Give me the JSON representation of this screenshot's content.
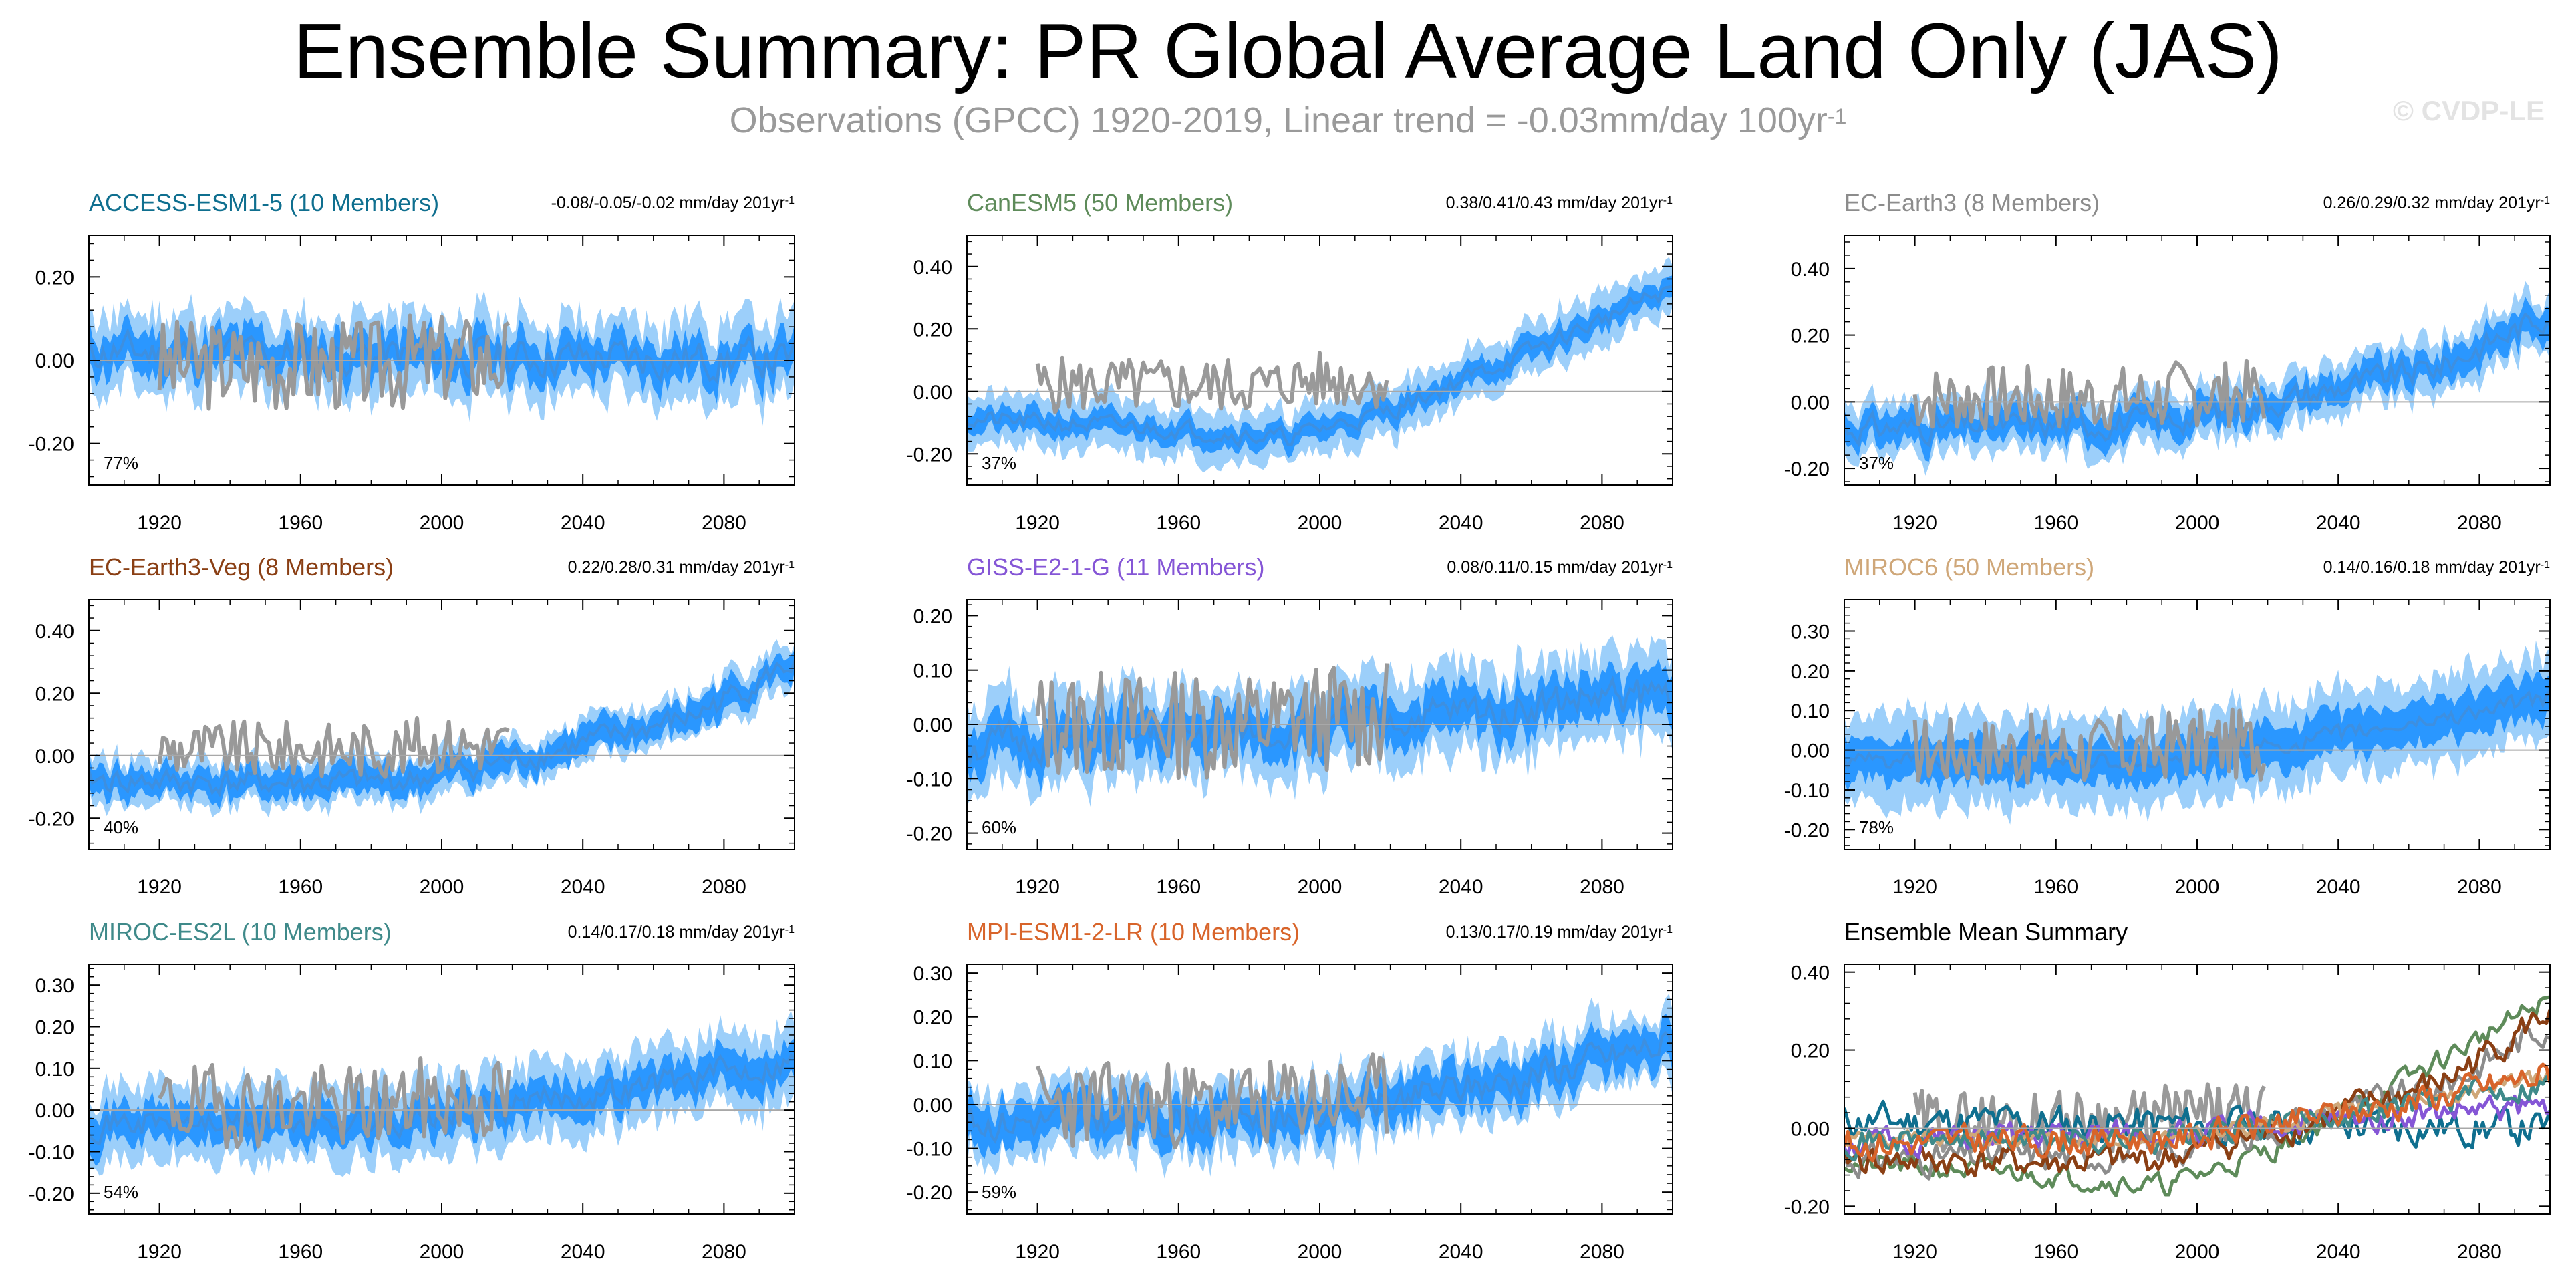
{
  "title": "Ensemble Summary: PR Global Average Land Only (JAS)",
  "subtitle": {
    "text": "Observations (GPCC) 1920-2019, Linear trend = -0.03mm/day 100yr",
    "superscript": "-1"
  },
  "watermark": "© CVDP-LE",
  "colors": {
    "ensemble_mean": "#3d8fe0",
    "spread_inner": "#1e90ff",
    "spread_outer": "#9ccffa",
    "observations": "#999999",
    "axis": "#000000",
    "zero_line": "#a8a8a8"
  },
  "chart_data": [
    {
      "type": "line",
      "title": "ACCESS-ESM1-5 (10 Members)",
      "title_color": "#0f6f8f",
      "trend_text": "-0.08/-0.05/-0.02 mm/day 201yr",
      "trend_superscript": "-1",
      "percent_label": "77%",
      "xlim": [
        1900,
        2100
      ],
      "ylim": [
        -0.3,
        0.3
      ],
      "xticks": [
        1920,
        1960,
        2000,
        2040,
        2080
      ],
      "xtick_labels": [
        "1920",
        "1960",
        "2000",
        "2040",
        "2080"
      ],
      "yticks": [
        -0.2,
        0.0,
        0.2
      ],
      "ytick_labels": [
        "-0.20",
        "0.00",
        "0.20"
      ],
      "model": {
        "start": 1900,
        "end": 2100,
        "mean_trend": [
          0.02,
          0.0
        ],
        "noise": 0.04,
        "inner": 0.05,
        "outer": 0.09,
        "seed": 11
      },
      "observations": {
        "start": 1920,
        "end": 2019,
        "noise": 0.11,
        "offset": -0.01,
        "seed": 3
      }
    },
    {
      "type": "line",
      "title": "CanESM5 (50 Members)",
      "title_color": "#5e8b5a",
      "trend_text": "0.38/0.41/0.43 mm/day 201yr",
      "trend_superscript": "-1",
      "percent_label": "37%",
      "xlim": [
        1900,
        2100
      ],
      "ylim": [
        -0.3,
        0.5
      ],
      "xticks": [
        1920,
        1960,
        2000,
        2040,
        2080
      ],
      "xtick_labels": [
        "1920",
        "1960",
        "2000",
        "2040",
        "2080"
      ],
      "yticks": [
        -0.2,
        0.0,
        0.2,
        0.4
      ],
      "ytick_labels": [
        "-0.20",
        "0.00",
        "0.20",
        "0.40"
      ],
      "model": {
        "start": 1900,
        "end": 2100,
        "mean_knots": [
          [
            1900,
            -0.09
          ],
          [
            1960,
            -0.12
          ],
          [
            1990,
            -0.15
          ],
          [
            2020,
            -0.06
          ],
          [
            2060,
            0.13
          ],
          [
            2100,
            0.33
          ]
        ],
        "noise": 0.025,
        "inner": 0.04,
        "outer": 0.08,
        "seed": 21
      },
      "observations": {
        "start": 1920,
        "end": 2019,
        "noise": 0.09,
        "offset": 0.02,
        "seed": 5
      }
    },
    {
      "type": "line",
      "title": "EC-Earth3 (8 Members)",
      "title_color": "#8c8c8c",
      "trend_text": "0.26/0.29/0.32 mm/day 201yr",
      "trend_superscript": "-1",
      "percent_label": "37%",
      "xlim": [
        1900,
        2100
      ],
      "ylim": [
        -0.25,
        0.5
      ],
      "xticks": [
        1920,
        1960,
        2000,
        2040,
        2080
      ],
      "xtick_labels": [
        "1920",
        "1960",
        "2000",
        "2040",
        "2080"
      ],
      "yticks": [
        -0.2,
        0.0,
        0.2,
        0.4
      ],
      "ytick_labels": [
        "-0.20",
        "0.00",
        "0.20",
        "0.40"
      ],
      "model": {
        "start": 1900,
        "end": 2100,
        "mean_knots": [
          [
            1900,
            -0.08
          ],
          [
            1960,
            -0.07
          ],
          [
            1990,
            -0.06
          ],
          [
            2030,
            0.02
          ],
          [
            2070,
            0.11
          ],
          [
            2100,
            0.27
          ]
        ],
        "noise": 0.035,
        "inner": 0.05,
        "outer": 0.08,
        "seed": 31
      },
      "observations": {
        "start": 1920,
        "end": 2019,
        "noise": 0.1,
        "offset": 0.01,
        "seed": 7
      }
    },
    {
      "type": "line",
      "title": "EC-Earth3-Veg (8 Members)",
      "title_color": "#8a3f14",
      "trend_text": "0.22/0.28/0.31 mm/day 201yr",
      "trend_superscript": "-1",
      "percent_label": "40%",
      "xlim": [
        1900,
        2100
      ],
      "ylim": [
        -0.3,
        0.5
      ],
      "xticks": [
        1920,
        1960,
        2000,
        2040,
        2080
      ],
      "xtick_labels": [
        "1920",
        "1960",
        "2000",
        "2040",
        "2080"
      ],
      "yticks": [
        -0.2,
        0.0,
        0.2,
        0.4
      ],
      "ytick_labels": [
        "-0.20",
        "0.00",
        "0.20",
        "0.40"
      ],
      "model": {
        "start": 1900,
        "end": 2100,
        "mean_knots": [
          [
            1900,
            -0.08
          ],
          [
            1960,
            -0.09
          ],
          [
            1990,
            -0.08
          ],
          [
            2030,
            0.01
          ],
          [
            2070,
            0.12
          ],
          [
            2100,
            0.3
          ]
        ],
        "noise": 0.035,
        "inner": 0.05,
        "outer": 0.07,
        "seed": 41
      },
      "observations": {
        "start": 1920,
        "end": 2019,
        "noise": 0.09,
        "offset": 0.02,
        "seed": 9
      }
    },
    {
      "type": "line",
      "title": "GISS-E2-1-G (11 Members)",
      "title_color": "#8556d6",
      "trend_text": "0.08/0.11/0.15 mm/day 201yr",
      "trend_superscript": "-1",
      "percent_label": "60%",
      "xlim": [
        1900,
        2100
      ],
      "ylim": [
        -0.23,
        0.23
      ],
      "xticks": [
        1920,
        1960,
        2000,
        2040,
        2080
      ],
      "xtick_labels": [
        "1920",
        "1960",
        "2000",
        "2040",
        "2080"
      ],
      "yticks": [
        -0.2,
        -0.1,
        0.0,
        0.1,
        0.2
      ],
      "ytick_labels": [
        "-0.20",
        "-0.10",
        "0.00",
        "0.10",
        "0.20"
      ],
      "model": {
        "start": 1900,
        "end": 2100,
        "mean_knots": [
          [
            1900,
            -0.04
          ],
          [
            1960,
            -0.02
          ],
          [
            2000,
            -0.01
          ],
          [
            2050,
            0.03
          ],
          [
            2100,
            0.06
          ]
        ],
        "noise": 0.03,
        "inner": 0.045,
        "outer": 0.08,
        "seed": 51
      },
      "observations": {
        "start": 1920,
        "end": 2019,
        "noise": 0.1,
        "offset": 0.0,
        "seed": 13
      }
    },
    {
      "type": "line",
      "title": "MIROC6 (50 Members)",
      "title_color": "#cfa779",
      "trend_text": "0.14/0.16/0.18 mm/day 201yr",
      "trend_superscript": "-1",
      "percent_label": "78%",
      "xlim": [
        1900,
        2100
      ],
      "ylim": [
        -0.25,
        0.38
      ],
      "xticks": [
        1920,
        1960,
        2000,
        2040,
        2080
      ],
      "xtick_labels": [
        "1920",
        "1960",
        "2000",
        "2040",
        "2080"
      ],
      "yticks": [
        -0.2,
        -0.1,
        0.0,
        0.1,
        0.2,
        0.3
      ],
      "ytick_labels": [
        "-0.20",
        "-0.10",
        "0.00",
        "0.10",
        "0.20",
        "0.30"
      ],
      "model": {
        "start": 1900,
        "end": 2100,
        "mean_knots": [
          [
            1900,
            -0.03
          ],
          [
            1960,
            -0.03
          ],
          [
            2000,
            -0.02
          ],
          [
            2050,
            0.05
          ],
          [
            2100,
            0.13
          ]
        ],
        "noise": 0.02,
        "inner": 0.06,
        "outer": 0.11,
        "seed": 61
      },
      "observations": {
        "start": 1920,
        "end": 2019,
        "noise": 0.09,
        "offset": 0.0,
        "seed": 17
      }
    },
    {
      "type": "line",
      "title": "MIROC-ES2L (10 Members)",
      "title_color": "#3f8a8a",
      "trend_text": "0.14/0.17/0.18 mm/day 201yr",
      "trend_superscript": "-1",
      "percent_label": "54%",
      "xlim": [
        1900,
        2100
      ],
      "ylim": [
        -0.25,
        0.35
      ],
      "xticks": [
        1920,
        1960,
        2000,
        2040,
        2080
      ],
      "xtick_labels": [
        "1920",
        "1960",
        "2000",
        "2040",
        "2080"
      ],
      "yticks": [
        -0.2,
        -0.1,
        0.0,
        0.1,
        0.2,
        0.3
      ],
      "ytick_labels": [
        "-0.20",
        "-0.10",
        "0.00",
        "0.10",
        "0.20",
        "0.30"
      ],
      "model": {
        "start": 1900,
        "end": 2100,
        "mean_knots": [
          [
            1900,
            -0.03
          ],
          [
            1960,
            -0.03
          ],
          [
            2000,
            -0.02
          ],
          [
            2050,
            0.05
          ],
          [
            2100,
            0.12
          ]
        ],
        "noise": 0.03,
        "inner": 0.05,
        "outer": 0.09,
        "seed": 71
      },
      "observations": {
        "start": 1920,
        "end": 2019,
        "noise": 0.1,
        "offset": 0.01,
        "seed": 19
      }
    },
    {
      "type": "line",
      "title": "MPI-ESM1-2-LR (10 Members)",
      "title_color": "#d8642a",
      "trend_text": "0.13/0.17/0.19 mm/day 201yr",
      "trend_superscript": "-1",
      "percent_label": "59%",
      "xlim": [
        1900,
        2100
      ],
      "ylim": [
        -0.25,
        0.32
      ],
      "xticks": [
        1920,
        1960,
        2000,
        2040,
        2080
      ],
      "xtick_labels": [
        "1920",
        "1960",
        "2000",
        "2040",
        "2080"
      ],
      "yticks": [
        -0.2,
        -0.1,
        0.0,
        0.1,
        0.2,
        0.3
      ],
      "ytick_labels": [
        "-0.20",
        "-0.10",
        "0.00",
        "0.10",
        "0.20",
        "0.30"
      ],
      "model": {
        "start": 1900,
        "end": 2100,
        "mean_knots": [
          [
            1900,
            -0.04
          ],
          [
            1960,
            -0.03
          ],
          [
            2000,
            -0.02
          ],
          [
            2050,
            0.05
          ],
          [
            2100,
            0.14
          ]
        ],
        "noise": 0.035,
        "inner": 0.05,
        "outer": 0.08,
        "seed": 81
      },
      "observations": {
        "start": 1920,
        "end": 2019,
        "noise": 0.1,
        "offset": 0.0,
        "seed": 23
      }
    }
  ],
  "summary_chart": {
    "type": "line",
    "title": "Ensemble Mean Summary",
    "xlim": [
      1900,
      2100
    ],
    "ylim": [
      -0.22,
      0.42
    ],
    "xticks": [
      1920,
      1960,
      2000,
      2040,
      2080
    ],
    "xtick_labels": [
      "1920",
      "1960",
      "2000",
      "2040",
      "2080"
    ],
    "yticks": [
      -0.2,
      0.0,
      0.2,
      0.4
    ],
    "ytick_labels": [
      "-0.20",
      "0.00",
      "0.20",
      "0.40"
    ],
    "series": [
      {
        "color": "#0f6f8f",
        "model_index": 0
      },
      {
        "color": "#5e8b5a",
        "model_index": 1
      },
      {
        "color": "#8c8c8c",
        "model_index": 2
      },
      {
        "color": "#8a3f14",
        "model_index": 3
      },
      {
        "color": "#8556d6",
        "model_index": 4
      },
      {
        "color": "#cfa779",
        "model_index": 5
      },
      {
        "color": "#3f8a8a",
        "model_index": 6
      },
      {
        "color": "#d8642a",
        "model_index": 7
      }
    ],
    "observations": {
      "start": 1920,
      "end": 2019,
      "noise": 0.08,
      "offset": 0.02,
      "seed": 29
    }
  }
}
